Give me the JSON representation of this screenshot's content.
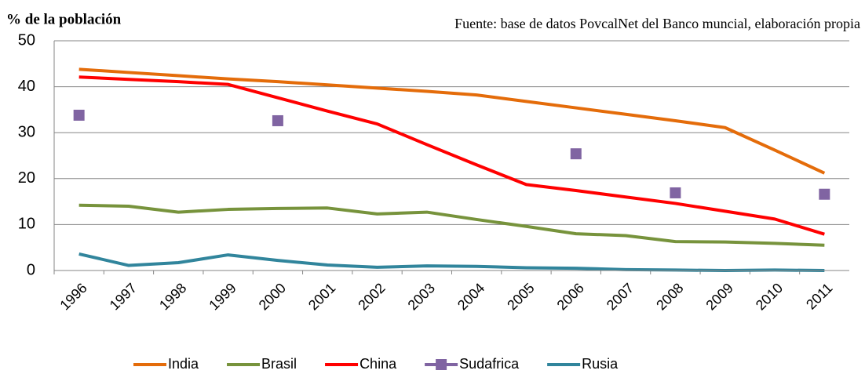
{
  "chart_data": {
    "type": "line",
    "title": "% de la población",
    "subtitle": "Fuente: base de datos PovcalNet del Banco muncial, elaboración propia",
    "categories": [
      "1996",
      "1997",
      "1998",
      "1999",
      "2000",
      "2001",
      "2002",
      "2003",
      "2004",
      "2005",
      "2006",
      "2007",
      "2008",
      "2009",
      "2010",
      "2011"
    ],
    "series": [
      {
        "name": "India",
        "color": "#e46c0a",
        "mode": "lines",
        "values": [
          43.8,
          43.1,
          42.4,
          41.7,
          41.1,
          40.4,
          39.7,
          39.0,
          38.2,
          36.8,
          35.4,
          34.0,
          32.6,
          31.1,
          26.2,
          21.2
        ]
      },
      {
        "name": "Brasil",
        "color": "#77933c",
        "mode": "lines",
        "values": [
          14.2,
          14.0,
          12.7,
          13.3,
          13.5,
          13.6,
          12.3,
          12.7,
          11.1,
          9.6,
          8.0,
          7.6,
          6.3,
          6.2,
          5.9,
          5.5
        ]
      },
      {
        "name": "China",
        "color": "#ff0000",
        "mode": "lines",
        "values": [
          42.1,
          41.6,
          41.1,
          40.5,
          37.6,
          34.7,
          31.9,
          27.4,
          23.0,
          18.7,
          17.4,
          16.0,
          14.6,
          12.9,
          11.2,
          7.9
        ]
      },
      {
        "name": "Sudafrica",
        "color": "#8064a2",
        "mode": "markers",
        "values": [
          33.8,
          null,
          null,
          null,
          32.6,
          null,
          null,
          null,
          null,
          null,
          25.4,
          null,
          16.9,
          null,
          null,
          16.6
        ]
      },
      {
        "name": "Rusia",
        "color": "#31859c",
        "mode": "lines",
        "values": [
          3.6,
          1.1,
          1.7,
          3.4,
          2.2,
          1.2,
          0.7,
          1.0,
          0.9,
          0.6,
          0.5,
          0.2,
          0.1,
          0.0,
          0.1,
          0.0
        ]
      }
    ],
    "ylim": [
      0,
      50
    ],
    "yticks": [
      0,
      10,
      20,
      30,
      40,
      50
    ],
    "grid": true,
    "legend": "bottom"
  }
}
